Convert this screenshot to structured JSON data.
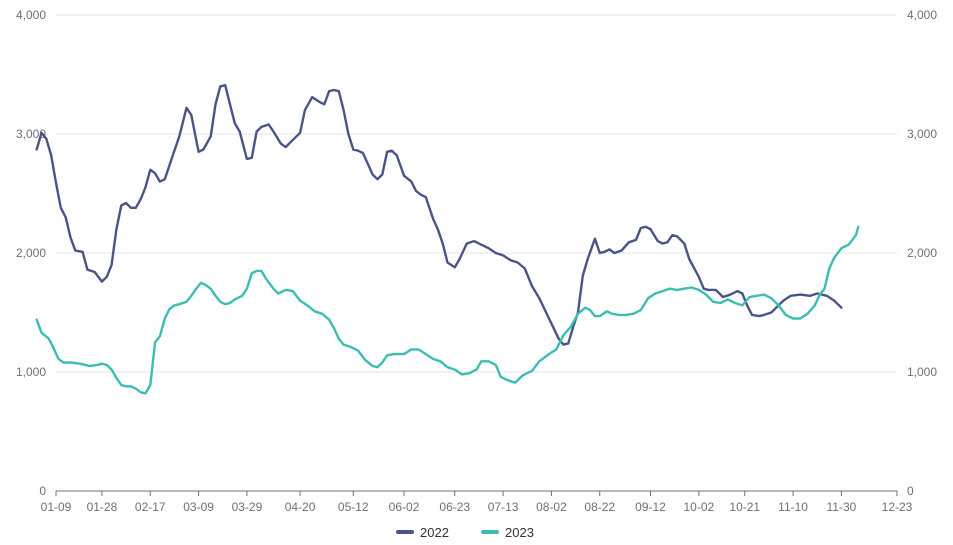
{
  "chart_data": {
    "type": "line",
    "title": "",
    "xlabel": "",
    "ylabel": "",
    "ylim": [
      0,
      4000
    ],
    "y_ticks": [
      "0",
      "1,000",
      "2,000",
      "3,000",
      "4,000"
    ],
    "y_ticks_right": [
      "0",
      "1,000",
      "2,000",
      "3,000",
      "4,000"
    ],
    "x_tick_labels": [
      "01-09",
      "01-28",
      "02-17",
      "03-09",
      "03-29",
      "04-20",
      "05-12",
      "06-02",
      "06-23",
      "07-13",
      "08-02",
      "08-22",
      "09-12",
      "10-02",
      "10-21",
      "11-10",
      "11-30",
      "12-23"
    ],
    "grid": "horizontal",
    "legend_position": "bottom",
    "series": [
      {
        "name": "2022",
        "color": "#4a5587",
        "points": [
          [
            "01-01",
            2870
          ],
          [
            "01-03",
            3010
          ],
          [
            "01-05",
            2960
          ],
          [
            "01-07",
            2820
          ],
          [
            "01-09",
            2590
          ],
          [
            "01-11",
            2380
          ],
          [
            "01-13",
            2300
          ],
          [
            "01-15",
            2130
          ],
          [
            "01-17",
            2020
          ],
          [
            "01-20",
            2010
          ],
          [
            "01-22",
            1860
          ],
          [
            "01-25",
            1840
          ],
          [
            "01-28",
            1760
          ],
          [
            "01-30",
            1800
          ],
          [
            "02-01",
            1900
          ],
          [
            "02-03",
            2200
          ],
          [
            "02-05",
            2400
          ],
          [
            "02-07",
            2420
          ],
          [
            "02-09",
            2380
          ],
          [
            "02-11",
            2380
          ],
          [
            "02-13",
            2450
          ],
          [
            "02-15",
            2550
          ],
          [
            "02-17",
            2700
          ],
          [
            "02-19",
            2670
          ],
          [
            "02-21",
            2600
          ],
          [
            "02-23",
            2620
          ],
          [
            "02-26",
            2800
          ],
          [
            "03-01",
            2980
          ],
          [
            "03-04",
            3220
          ],
          [
            "03-06",
            3160
          ],
          [
            "03-08",
            2950
          ],
          [
            "03-09",
            2850
          ],
          [
            "03-11",
            2870
          ],
          [
            "03-14",
            2980
          ],
          [
            "03-16",
            3250
          ],
          [
            "03-18",
            3400
          ],
          [
            "03-20",
            3410
          ],
          [
            "03-22",
            3250
          ],
          [
            "03-24",
            3090
          ],
          [
            "03-26",
            3020
          ],
          [
            "03-29",
            2790
          ],
          [
            "03-31",
            2800
          ],
          [
            "04-02",
            3020
          ],
          [
            "04-04",
            3060
          ],
          [
            "04-07",
            3080
          ],
          [
            "04-09",
            3020
          ],
          [
            "04-12",
            2920
          ],
          [
            "04-14",
            2890
          ],
          [
            "04-16",
            2930
          ],
          [
            "04-20",
            3010
          ],
          [
            "04-22",
            3200
          ],
          [
            "04-25",
            3310
          ],
          [
            "04-28",
            3270
          ],
          [
            "04-30",
            3250
          ],
          [
            "05-02",
            3360
          ],
          [
            "05-04",
            3370
          ],
          [
            "05-06",
            3360
          ],
          [
            "05-08",
            3200
          ],
          [
            "05-10",
            3000
          ],
          [
            "05-12",
            2870
          ],
          [
            "05-14",
            2860
          ],
          [
            "05-16",
            2840
          ],
          [
            "05-18",
            2750
          ],
          [
            "05-20",
            2660
          ],
          [
            "05-22",
            2620
          ],
          [
            "05-24",
            2660
          ],
          [
            "05-26",
            2850
          ],
          [
            "05-28",
            2860
          ],
          [
            "05-30",
            2820
          ],
          [
            "06-02",
            2650
          ],
          [
            "06-05",
            2600
          ],
          [
            "06-07",
            2520
          ],
          [
            "06-09",
            2490
          ],
          [
            "06-11",
            2470
          ],
          [
            "06-14",
            2290
          ],
          [
            "06-16",
            2200
          ],
          [
            "06-18",
            2080
          ],
          [
            "06-20",
            1920
          ],
          [
            "06-23",
            1880
          ],
          [
            "06-25",
            1950
          ],
          [
            "06-28",
            2080
          ],
          [
            "07-01",
            2100
          ],
          [
            "07-04",
            2070
          ],
          [
            "07-07",
            2040
          ],
          [
            "07-10",
            2000
          ],
          [
            "07-13",
            1980
          ],
          [
            "07-16",
            1940
          ],
          [
            "07-19",
            1920
          ],
          [
            "07-22",
            1870
          ],
          [
            "07-25",
            1720
          ],
          [
            "07-28",
            1620
          ],
          [
            "08-01",
            1450
          ],
          [
            "08-05",
            1280
          ],
          [
            "08-07",
            1230
          ],
          [
            "08-09",
            1240
          ],
          [
            "08-11",
            1380
          ],
          [
            "08-13",
            1500
          ],
          [
            "08-15",
            1810
          ],
          [
            "08-17",
            1950
          ],
          [
            "08-20",
            2120
          ],
          [
            "08-22",
            2000
          ],
          [
            "08-24",
            2010
          ],
          [
            "08-26",
            2030
          ],
          [
            "08-28",
            2000
          ],
          [
            "08-31",
            2020
          ],
          [
            "09-03",
            2090
          ],
          [
            "09-06",
            2110
          ],
          [
            "09-08",
            2210
          ],
          [
            "09-10",
            2220
          ],
          [
            "09-12",
            2200
          ],
          [
            "09-15",
            2100
          ],
          [
            "09-17",
            2080
          ],
          [
            "09-19",
            2090
          ],
          [
            "09-21",
            2150
          ],
          [
            "09-23",
            2140
          ],
          [
            "09-26",
            2080
          ],
          [
            "09-28",
            1950
          ],
          [
            "10-02",
            1800
          ],
          [
            "10-04",
            1700
          ],
          [
            "10-06",
            1690
          ],
          [
            "10-09",
            1690
          ],
          [
            "10-12",
            1630
          ],
          [
            "10-15",
            1650
          ],
          [
            "10-18",
            1680
          ],
          [
            "10-20",
            1660
          ],
          [
            "10-22",
            1560
          ],
          [
            "10-24",
            1480
          ],
          [
            "10-27",
            1470
          ],
          [
            "10-29",
            1480
          ],
          [
            "11-01",
            1500
          ],
          [
            "11-03",
            1540
          ],
          [
            "11-06",
            1600
          ],
          [
            "11-09",
            1640
          ],
          [
            "11-13",
            1650
          ],
          [
            "11-17",
            1640
          ],
          [
            "11-20",
            1660
          ],
          [
            "11-24",
            1640
          ],
          [
            "11-27",
            1600
          ],
          [
            "11-30",
            1540
          ]
        ]
      },
      {
        "name": "2023",
        "color": "#3dbdb2",
        "points": [
          [
            "01-01",
            1440
          ],
          [
            "01-03",
            1330
          ],
          [
            "01-06",
            1280
          ],
          [
            "01-08",
            1200
          ],
          [
            "01-10",
            1110
          ],
          [
            "01-12",
            1080
          ],
          [
            "01-15",
            1080
          ],
          [
            "01-19",
            1070
          ],
          [
            "01-23",
            1050
          ],
          [
            "01-26",
            1060
          ],
          [
            "01-28",
            1070
          ],
          [
            "01-30",
            1060
          ],
          [
            "02-01",
            1020
          ],
          [
            "02-03",
            950
          ],
          [
            "02-05",
            890
          ],
          [
            "02-07",
            880
          ],
          [
            "02-09",
            880
          ],
          [
            "02-11",
            860
          ],
          [
            "02-13",
            830
          ],
          [
            "02-15",
            820
          ],
          [
            "02-17",
            890
          ],
          [
            "02-19",
            1250
          ],
          [
            "02-21",
            1300
          ],
          [
            "02-23",
            1450
          ],
          [
            "02-25",
            1530
          ],
          [
            "02-27",
            1560
          ],
          [
            "03-01",
            1570
          ],
          [
            "03-04",
            1590
          ],
          [
            "03-06",
            1640
          ],
          [
            "03-08",
            1700
          ],
          [
            "03-10",
            1750
          ],
          [
            "03-12",
            1730
          ],
          [
            "03-14",
            1700
          ],
          [
            "03-16",
            1640
          ],
          [
            "03-18",
            1590
          ],
          [
            "03-20",
            1570
          ],
          [
            "03-22",
            1580
          ],
          [
            "03-24",
            1610
          ],
          [
            "03-27",
            1640
          ],
          [
            "03-29",
            1700
          ],
          [
            "03-31",
            1830
          ],
          [
            "04-02",
            1850
          ],
          [
            "04-04",
            1850
          ],
          [
            "04-06",
            1780
          ],
          [
            "04-09",
            1700
          ],
          [
            "04-11",
            1660
          ],
          [
            "04-14",
            1690
          ],
          [
            "04-17",
            1680
          ],
          [
            "04-20",
            1600
          ],
          [
            "04-23",
            1560
          ],
          [
            "04-26",
            1510
          ],
          [
            "04-29",
            1490
          ],
          [
            "05-02",
            1440
          ],
          [
            "05-04",
            1370
          ],
          [
            "05-06",
            1280
          ],
          [
            "05-08",
            1230
          ],
          [
            "05-11",
            1210
          ],
          [
            "05-14",
            1180
          ],
          [
            "05-17",
            1100
          ],
          [
            "05-20",
            1050
          ],
          [
            "05-22",
            1040
          ],
          [
            "05-24",
            1080
          ],
          [
            "05-26",
            1140
          ],
          [
            "05-29",
            1150
          ],
          [
            "06-02",
            1150
          ],
          [
            "06-05",
            1190
          ],
          [
            "06-08",
            1190
          ],
          [
            "06-11",
            1150
          ],
          [
            "06-14",
            1110
          ],
          [
            "06-17",
            1090
          ],
          [
            "06-20",
            1040
          ],
          [
            "06-23",
            1020
          ],
          [
            "06-26",
            980
          ],
          [
            "06-29",
            990
          ],
          [
            "07-02",
            1020
          ],
          [
            "07-04",
            1090
          ],
          [
            "07-07",
            1090
          ],
          [
            "07-10",
            1060
          ],
          [
            "07-12",
            960
          ],
          [
            "07-15",
            930
          ],
          [
            "07-18",
            910
          ],
          [
            "07-21",
            970
          ],
          [
            "07-25",
            1010
          ],
          [
            "07-28",
            1090
          ],
          [
            "08-01",
            1150
          ],
          [
            "08-04",
            1190
          ],
          [
            "08-07",
            1310
          ],
          [
            "08-10",
            1380
          ],
          [
            "08-13",
            1490
          ],
          [
            "08-16",
            1540
          ],
          [
            "08-18",
            1520
          ],
          [
            "08-20",
            1470
          ],
          [
            "08-22",
            1470
          ],
          [
            "08-25",
            1510
          ],
          [
            "08-27",
            1490
          ],
          [
            "08-30",
            1480
          ],
          [
            "09-02",
            1480
          ],
          [
            "09-05",
            1490
          ],
          [
            "09-08",
            1520
          ],
          [
            "09-11",
            1620
          ],
          [
            "09-14",
            1660
          ],
          [
            "09-17",
            1680
          ],
          [
            "09-20",
            1700
          ],
          [
            "09-23",
            1690
          ],
          [
            "09-26",
            1700
          ],
          [
            "09-29",
            1710
          ],
          [
            "10-02",
            1690
          ],
          [
            "10-05",
            1650
          ],
          [
            "10-08",
            1590
          ],
          [
            "10-11",
            1580
          ],
          [
            "10-14",
            1610
          ],
          [
            "10-17",
            1580
          ],
          [
            "10-20",
            1560
          ],
          [
            "10-23",
            1630
          ],
          [
            "10-26",
            1640
          ],
          [
            "10-29",
            1650
          ],
          [
            "11-01",
            1620
          ],
          [
            "11-04",
            1560
          ],
          [
            "11-07",
            1480
          ],
          [
            "11-10",
            1450
          ],
          [
            "11-13",
            1450
          ],
          [
            "11-16",
            1490
          ],
          [
            "11-19",
            1560
          ],
          [
            "11-21",
            1650
          ],
          [
            "11-23",
            1700
          ],
          [
            "11-25",
            1870
          ],
          [
            "11-27",
            1960
          ],
          [
            "11-30",
            2040
          ],
          [
            "12-03",
            2070
          ],
          [
            "12-06",
            2150
          ],
          [
            "12-07",
            2220
          ]
        ]
      }
    ]
  }
}
